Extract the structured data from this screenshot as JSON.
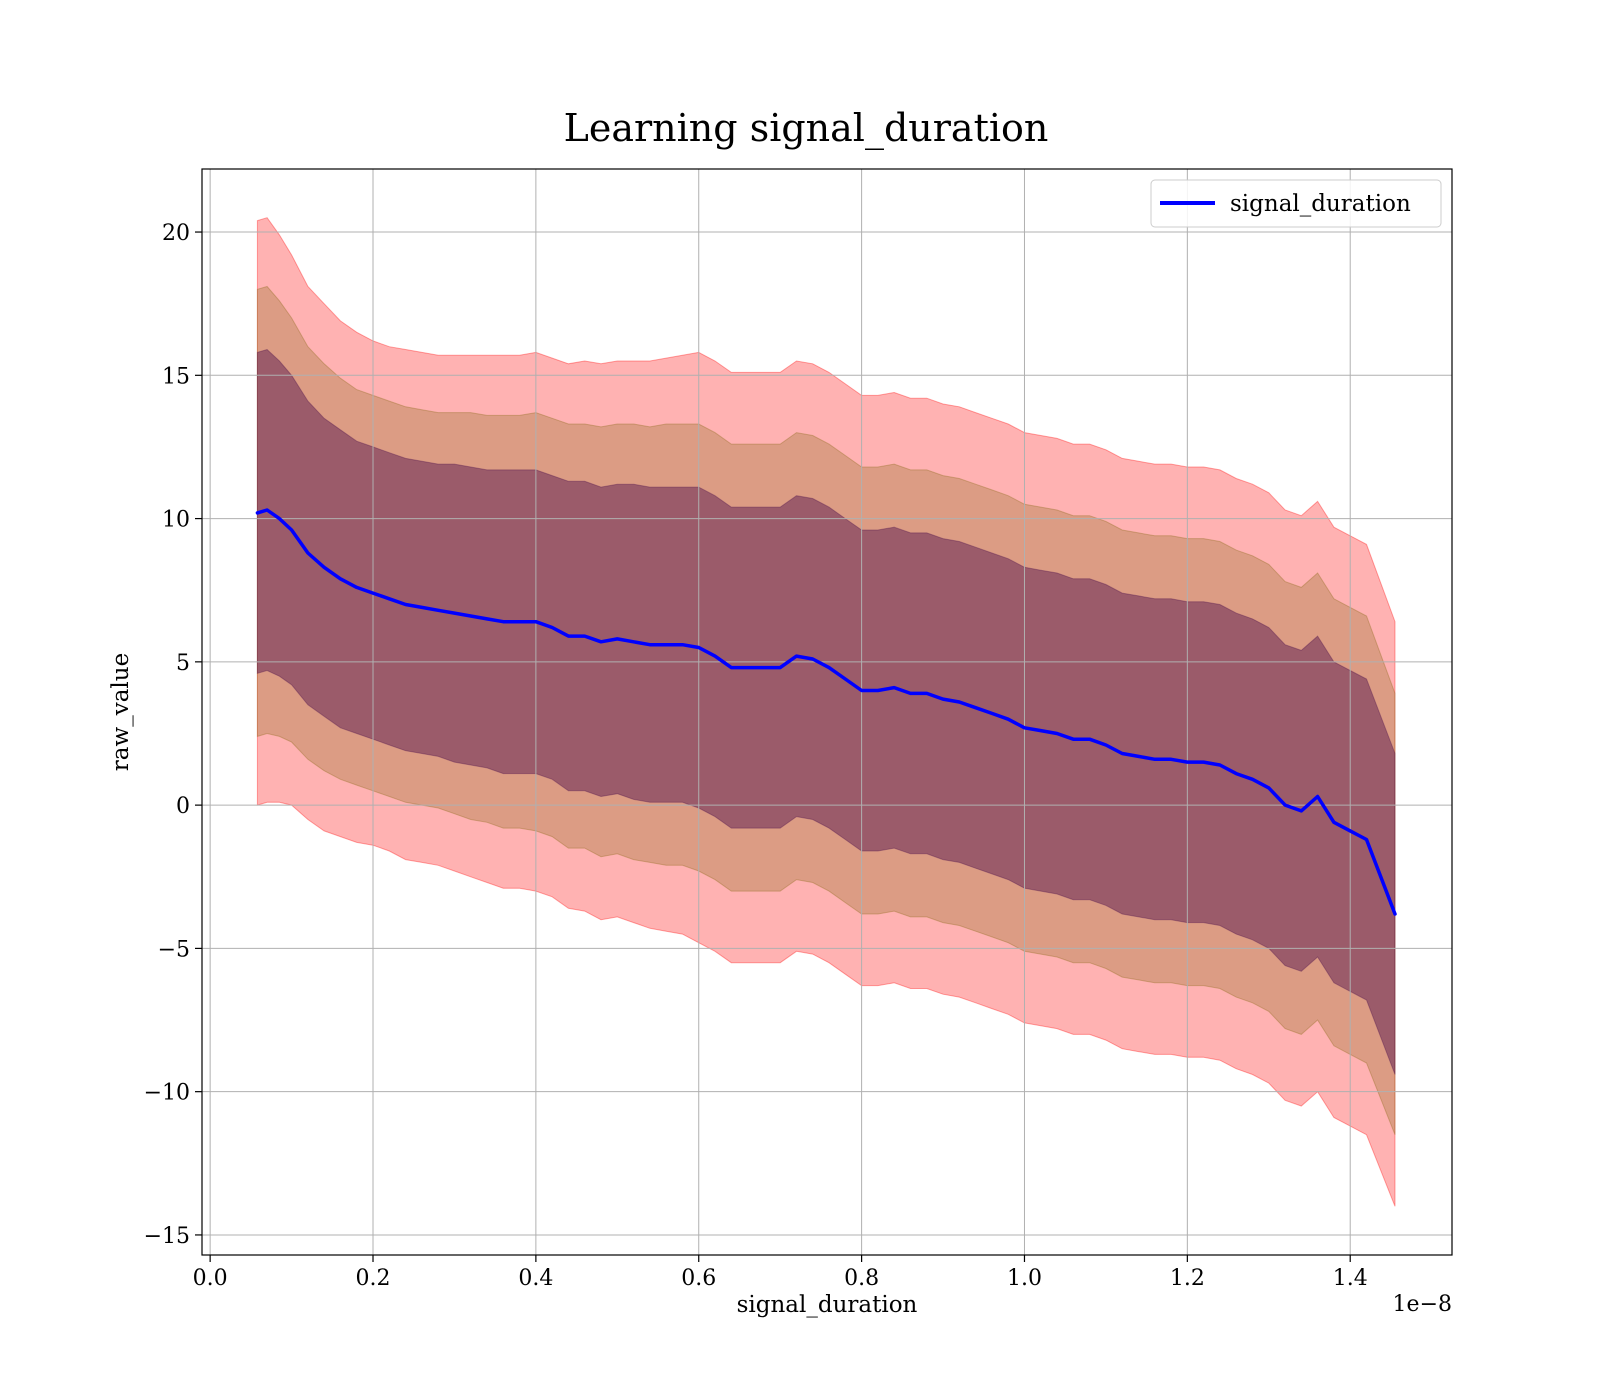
{
  "chart_data": {
    "type": "area",
    "title": "Learning signal_duration",
    "xlabel": "signal_duration",
    "ylabel": "raw_value",
    "x_offset_label": "1e−8",
    "xlim": [
      -0.01,
      1.525
    ],
    "ylim": [
      -15.7,
      22.2
    ],
    "x_ticks": [
      0.0,
      0.2,
      0.4,
      0.6,
      0.8,
      1.0,
      1.2,
      1.4
    ],
    "x_tick_labels": [
      "0.0",
      "0.2",
      "0.4",
      "0.6",
      "0.8",
      "1.0",
      "1.2",
      "1.4"
    ],
    "y_ticks": [
      -15,
      -10,
      -5,
      0,
      5,
      10,
      15,
      20
    ],
    "y_tick_labels": [
      "−15",
      "−10",
      "−5",
      "0",
      "5",
      "10",
      "15",
      "20"
    ],
    "grid": true,
    "legend": {
      "position": "top-right",
      "entries": [
        "signal_duration"
      ]
    },
    "series": [
      {
        "name": "signal_duration",
        "color": "#0000ff",
        "x": [
          0.058,
          0.07,
          0.085,
          0.1,
          0.12,
          0.14,
          0.16,
          0.18,
          0.2,
          0.22,
          0.24,
          0.26,
          0.28,
          0.3,
          0.32,
          0.34,
          0.36,
          0.38,
          0.4,
          0.42,
          0.44,
          0.46,
          0.48,
          0.5,
          0.52,
          0.54,
          0.56,
          0.58,
          0.6,
          0.62,
          0.64,
          0.66,
          0.68,
          0.7,
          0.72,
          0.74,
          0.76,
          0.78,
          0.8,
          0.82,
          0.84,
          0.86,
          0.88,
          0.9,
          0.92,
          0.94,
          0.96,
          0.98,
          1.0,
          1.02,
          1.04,
          1.06,
          1.08,
          1.1,
          1.12,
          1.14,
          1.16,
          1.18,
          1.2,
          1.22,
          1.24,
          1.26,
          1.28,
          1.3,
          1.32,
          1.34,
          1.36,
          1.38,
          1.4,
          1.42,
          1.455
        ],
        "values": [
          10.2,
          10.3,
          10.0,
          9.6,
          8.8,
          8.3,
          7.9,
          7.6,
          7.4,
          7.2,
          7.0,
          6.9,
          6.8,
          6.7,
          6.6,
          6.5,
          6.4,
          6.4,
          6.4,
          6.2,
          5.9,
          5.9,
          5.7,
          5.8,
          5.7,
          5.6,
          5.6,
          5.6,
          5.5,
          5.2,
          4.8,
          4.8,
          4.8,
          4.8,
          5.2,
          5.1,
          4.8,
          4.4,
          4.0,
          4.0,
          4.1,
          3.9,
          3.9,
          3.7,
          3.6,
          3.4,
          3.2,
          3.0,
          2.7,
          2.6,
          2.5,
          2.3,
          2.3,
          2.1,
          1.8,
          1.7,
          1.6,
          1.6,
          1.5,
          1.5,
          1.4,
          1.1,
          0.9,
          0.6,
          0.0,
          -0.2,
          0.3,
          -0.6,
          -0.9,
          -1.2,
          -3.8
        ]
      }
    ],
    "bands": [
      {
        "k": 3,
        "halfwidth": [
          10.2,
          10.2,
          9.9,
          9.6,
          9.3,
          9.2,
          9.0,
          8.9,
          8.8,
          8.8,
          8.9,
          8.9,
          8.9,
          9.0,
          9.1,
          9.2,
          9.3,
          9.3,
          9.4,
          9.4,
          9.5,
          9.6,
          9.7,
          9.7,
          9.8,
          9.9,
          10.0,
          10.1,
          10.3,
          10.3,
          10.3,
          10.3,
          10.3,
          10.3,
          10.3,
          10.3,
          10.3,
          10.3,
          10.3,
          10.3,
          10.3,
          10.3,
          10.3,
          10.3,
          10.3,
          10.3,
          10.3,
          10.3,
          10.3,
          10.3,
          10.3,
          10.3,
          10.3,
          10.3,
          10.3,
          10.3,
          10.3,
          10.3,
          10.3,
          10.3,
          10.3,
          10.3,
          10.3,
          10.3,
          10.3,
          10.3,
          10.3,
          10.3,
          10.3,
          10.3,
          10.2
        ],
        "color": "#ff0000",
        "opacity": 0.3
      },
      {
        "k": 2,
        "halfwidth": [
          7.8,
          7.8,
          7.6,
          7.4,
          7.2,
          7.1,
          7.0,
          6.9,
          6.9,
          6.9,
          6.9,
          6.9,
          6.9,
          7.0,
          7.1,
          7.1,
          7.2,
          7.2,
          7.3,
          7.3,
          7.4,
          7.4,
          7.5,
          7.5,
          7.6,
          7.6,
          7.7,
          7.7,
          7.8,
          7.8,
          7.8,
          7.8,
          7.8,
          7.8,
          7.8,
          7.8,
          7.8,
          7.8,
          7.8,
          7.8,
          7.8,
          7.8,
          7.8,
          7.8,
          7.8,
          7.8,
          7.8,
          7.8,
          7.8,
          7.8,
          7.8,
          7.8,
          7.8,
          7.8,
          7.8,
          7.8,
          7.8,
          7.8,
          7.8,
          7.8,
          7.8,
          7.8,
          7.8,
          7.8,
          7.8,
          7.8,
          7.8,
          7.8,
          7.8,
          7.8,
          7.7
        ],
        "color": "#8b6a1a",
        "opacity": 0.3
      },
      {
        "k": 1,
        "halfwidth": [
          5.6,
          5.6,
          5.5,
          5.4,
          5.3,
          5.2,
          5.2,
          5.1,
          5.1,
          5.1,
          5.1,
          5.1,
          5.1,
          5.2,
          5.2,
          5.2,
          5.3,
          5.3,
          5.3,
          5.3,
          5.4,
          5.4,
          5.4,
          5.4,
          5.5,
          5.5,
          5.5,
          5.5,
          5.6,
          5.6,
          5.6,
          5.6,
          5.6,
          5.6,
          5.6,
          5.6,
          5.6,
          5.6,
          5.6,
          5.6,
          5.6,
          5.6,
          5.6,
          5.6,
          5.6,
          5.6,
          5.6,
          5.6,
          5.6,
          5.6,
          5.6,
          5.6,
          5.6,
          5.6,
          5.6,
          5.6,
          5.6,
          5.6,
          5.6,
          5.6,
          5.6,
          5.6,
          5.6,
          5.6,
          5.6,
          5.6,
          5.6,
          5.6,
          5.6,
          5.6,
          5.6
        ],
        "color": "#4b0d4b",
        "opacity": 0.45
      }
    ]
  }
}
